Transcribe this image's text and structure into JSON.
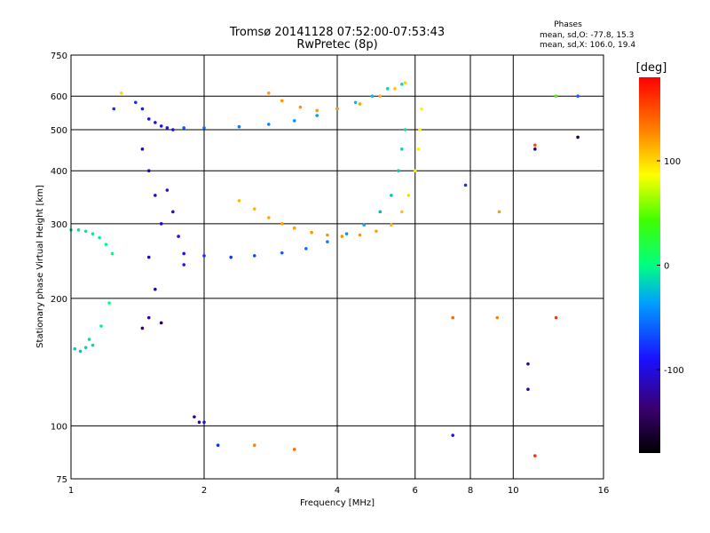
{
  "chart_data": {
    "type": "scatter",
    "title": "Tromsø 20141128 07:52:00-07:53:43",
    "subtitle": "RwPretec (8p)",
    "xlabel": "Frequency [MHz]",
    "ylabel": "Stationary phase Virtual Height [km]",
    "x_scale": "log",
    "y_scale": "log",
    "xlim": [
      1,
      16
    ],
    "ylim": [
      75,
      750
    ],
    "x_ticks": [
      "1",
      "2",
      "4",
      "6",
      "8",
      "10",
      "16"
    ],
    "x_tick_values": [
      1,
      2,
      4,
      6,
      8,
      10,
      16
    ],
    "y_ticks": [
      "750",
      "600",
      "500",
      "400",
      "300",
      "200",
      "100",
      "75"
    ],
    "y_tick_values": [
      750,
      600,
      500,
      400,
      300,
      200,
      100,
      75
    ],
    "grid": true,
    "phase_info": {
      "heading": "Phases",
      "line1": "mean, sd,O: -77.8, 15.3",
      "line2": "mean, sd,X: 106.0, 19.4"
    },
    "colorbar": {
      "label": "[deg]",
      "range": [
        -180,
        180
      ],
      "ticks": [
        "100",
        "0",
        "-100"
      ],
      "tick_values": [
        100,
        0,
        -100
      ]
    },
    "series": [
      {
        "description": "low-frequency E/F1 layer band",
        "points": [
          [
            1.0,
            290,
            -10
          ],
          [
            1.04,
            290,
            -12
          ],
          [
            1.08,
            288,
            -8
          ],
          [
            1.12,
            284,
            -6
          ],
          [
            1.16,
            278,
            -4
          ],
          [
            1.2,
            268,
            -2
          ],
          [
            1.24,
            255,
            0
          ],
          [
            1.02,
            152,
            -20
          ],
          [
            1.05,
            150,
            -22
          ],
          [
            1.08,
            153,
            -18
          ],
          [
            1.12,
            155,
            -16
          ],
          [
            1.17,
            172,
            -5
          ],
          [
            1.22,
            195,
            2
          ],
          [
            1.1,
            160,
            -15
          ]
        ]
      },
      {
        "description": "F1 spread around 1.4-1.8 MHz",
        "points": [
          [
            1.4,
            580,
            -80
          ],
          [
            1.45,
            560,
            -85
          ],
          [
            1.5,
            530,
            -95
          ],
          [
            1.55,
            520,
            -100
          ],
          [
            1.6,
            510,
            -92
          ],
          [
            1.65,
            505,
            -88
          ],
          [
            1.7,
            500,
            -90
          ],
          [
            1.45,
            450,
            -110
          ],
          [
            1.5,
            400,
            -115
          ],
          [
            1.55,
            350,
            -112
          ],
          [
            1.6,
            300,
            -110
          ],
          [
            1.5,
            250,
            -118
          ],
          [
            1.55,
            210,
            -120
          ],
          [
            1.5,
            180,
            -125
          ],
          [
            1.45,
            170,
            -140
          ],
          [
            1.6,
            175,
            -150
          ],
          [
            1.65,
            360,
            -100
          ],
          [
            1.7,
            320,
            -105
          ],
          [
            1.75,
            280,
            -95
          ],
          [
            1.8,
            240,
            -90
          ]
        ]
      },
      {
        "description": "O-mode F2 trace",
        "points": [
          [
            1.8,
            255,
            -90
          ],
          [
            2.0,
            252,
            -80
          ],
          [
            2.3,
            250,
            -75
          ],
          [
            2.6,
            252,
            -70
          ],
          [
            3.0,
            256,
            -60
          ],
          [
            3.4,
            262,
            -55
          ],
          [
            3.8,
            272,
            -50
          ],
          [
            4.2,
            284,
            -40
          ],
          [
            4.6,
            298,
            -35
          ],
          [
            5.0,
            320,
            -30
          ],
          [
            5.3,
            350,
            -25
          ],
          [
            5.5,
            400,
            -20
          ],
          [
            5.6,
            450,
            -15
          ],
          [
            5.7,
            500,
            -10
          ]
        ]
      },
      {
        "description": "O-mode upper F2 trace",
        "points": [
          [
            1.8,
            505,
            -60
          ],
          [
            2.0,
            505,
            -55
          ],
          [
            2.4,
            508,
            -50
          ],
          [
            2.8,
            515,
            -45
          ],
          [
            3.2,
            525,
            -40
          ],
          [
            3.6,
            540,
            -35
          ],
          [
            4.0,
            560,
            -30
          ],
          [
            4.4,
            580,
            -25
          ],
          [
            4.8,
            600,
            -20
          ],
          [
            5.2,
            625,
            -15
          ],
          [
            5.6,
            640,
            -10
          ]
        ]
      },
      {
        "description": "X-mode F2 trace",
        "points": [
          [
            2.4,
            340,
            110
          ],
          [
            2.6,
            325,
            112
          ],
          [
            2.8,
            310,
            115
          ],
          [
            3.0,
            300,
            118
          ],
          [
            3.2,
            293,
            120
          ],
          [
            3.5,
            286,
            122
          ],
          [
            3.8,
            282,
            123
          ],
          [
            4.1,
            280,
            124
          ],
          [
            4.5,
            282,
            122
          ],
          [
            4.9,
            288,
            118
          ],
          [
            5.3,
            298,
            112
          ],
          [
            5.6,
            320,
            106
          ],
          [
            5.8,
            350,
            100
          ],
          [
            6.0,
            400,
            95
          ],
          [
            6.1,
            450,
            92
          ],
          [
            6.15,
            500,
            90
          ],
          [
            6.2,
            560,
            90
          ]
        ]
      },
      {
        "description": "X-mode upper F2 trace",
        "points": [
          [
            2.8,
            610,
            120
          ],
          [
            3.0,
            585,
            122
          ],
          [
            3.3,
            565,
            124
          ],
          [
            3.6,
            555,
            123
          ],
          [
            4.0,
            560,
            122
          ],
          [
            4.5,
            575,
            118
          ],
          [
            5.0,
            600,
            112
          ],
          [
            5.4,
            625,
            106
          ],
          [
            5.7,
            645,
            100
          ]
        ]
      },
      {
        "description": "isolated points",
        "points": [
          [
            1.3,
            610,
            100
          ],
          [
            1.25,
            560,
            -80
          ],
          [
            1.9,
            105,
            -130
          ],
          [
            1.95,
            102,
            -120
          ],
          [
            2.0,
            102,
            -100
          ],
          [
            2.15,
            90,
            -80
          ],
          [
            2.6,
            90,
            130
          ],
          [
            3.2,
            88,
            140
          ],
          [
            7.3,
            95,
            -90
          ],
          [
            7.3,
            180,
            140
          ],
          [
            9.2,
            180,
            130
          ],
          [
            10.8,
            140,
            -120
          ],
          [
            10.8,
            122,
            -110
          ],
          [
            11.2,
            85,
            160
          ],
          [
            11.2,
            460,
            150
          ],
          [
            11.2,
            450,
            -140
          ],
          [
            14.0,
            600,
            -60
          ],
          [
            14.0,
            480,
            -150
          ],
          [
            12.5,
            600,
            40
          ],
          [
            12.5,
            180,
            160
          ],
          [
            7.8,
            370,
            -80
          ],
          [
            9.3,
            320,
            120
          ]
        ]
      }
    ]
  }
}
